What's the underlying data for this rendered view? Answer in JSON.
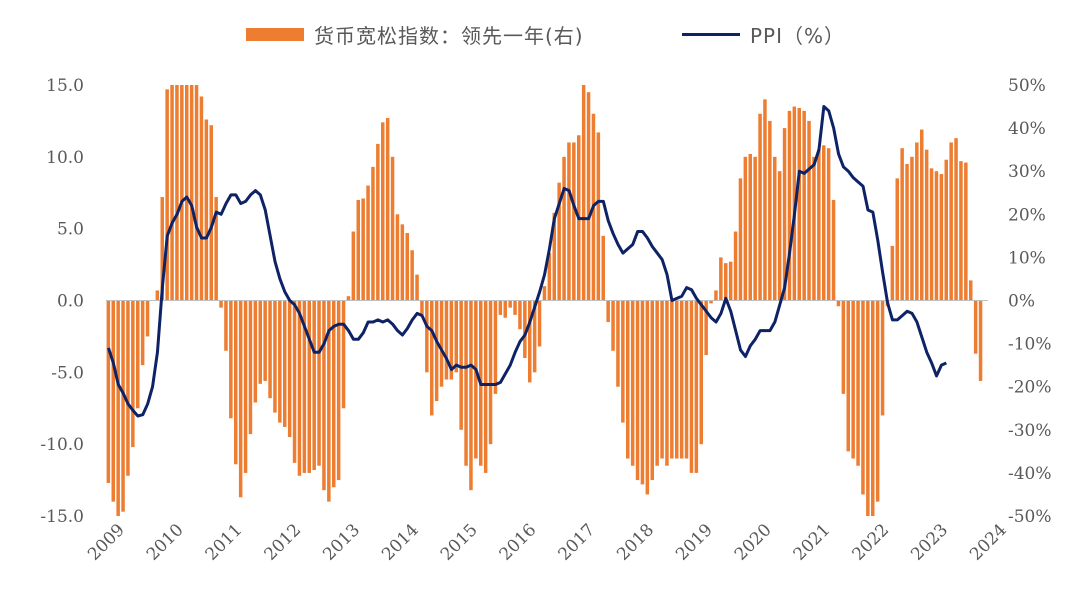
{
  "legend": {
    "bar_label": "货币宽松指数：领先一年(右)",
    "line_label": "PPI（%）"
  },
  "colors": {
    "bar": "#ED7D31",
    "line": "#0E2266",
    "axis": "#BFBFBF",
    "text": "#595959"
  },
  "chart_data": {
    "type": "bar+line",
    "title": "",
    "x_tick_labels": [
      "2009",
      "2010",
      "2011",
      "2012",
      "2013",
      "2014",
      "2015",
      "2016",
      "2017",
      "2018",
      "2019",
      "2020",
      "2021",
      "2022",
      "2023",
      "2024"
    ],
    "left_axis": {
      "ylim": [
        -15,
        15
      ],
      "ticks": [
        15,
        10,
        5,
        0,
        -5,
        -10,
        -15
      ],
      "tick_labels": [
        "15.0",
        "10.0",
        "5.0",
        "0.0",
        "-5.0",
        "-10.0",
        "-15.0"
      ]
    },
    "right_axis": {
      "ylim": [
        -50,
        50
      ],
      "ticks": [
        50,
        40,
        30,
        20,
        10,
        0,
        -10,
        -20,
        -30,
        -40,
        -50
      ],
      "tick_labels": [
        "50%",
        "40%",
        "30%",
        "20%",
        "10%",
        "0%",
        "-10%",
        "-20%",
        "-30%",
        "-40%",
        "-50%"
      ]
    },
    "series": [
      {
        "name": "货币宽松指数：领先一年(右)",
        "type": "bar",
        "axis": "left",
        "start": "2009-01",
        "frequency": "monthly",
        "values": [
          -12.7,
          -14.0,
          -15.0,
          -14.7,
          -12.2,
          -10.2,
          -7.5,
          -4.5,
          -2.5,
          0.0,
          0.7,
          7.2,
          14.7,
          15.0,
          15.0,
          15.0,
          15.0,
          15.0,
          15.0,
          14.2,
          12.6,
          12.2,
          7.2,
          -0.5,
          -3.5,
          -8.2,
          -11.4,
          -13.7,
          -12.0,
          -9.3,
          -7.1,
          -5.8,
          -5.6,
          -6.8,
          -7.8,
          -8.5,
          -8.8,
          -9.5,
          -11.3,
          -12.2,
          -12.0,
          -12.0,
          -11.8,
          -11.5,
          -13.2,
          -14.0,
          -13.0,
          -12.5,
          -7.5,
          0.3,
          4.8,
          7.0,
          7.1,
          8.0,
          9.3,
          10.9,
          12.4,
          12.7,
          10.0,
          6.0,
          5.3,
          4.7,
          3.5,
          1.8,
          -1.0,
          -5.0,
          -8.0,
          -7.0,
          -6.0,
          -5.5,
          -5.5,
          -5.0,
          -9.0,
          -11.5,
          -13.2,
          -11.0,
          -11.5,
          -12.0,
          -10.0,
          -6.5,
          -1.0,
          -1.2,
          -0.5,
          -1.0,
          -2.0,
          -4.0,
          -5.7,
          -5.0,
          -3.2,
          1.0,
          3.3,
          6.1,
          8.2,
          10.0,
          11.0,
          11.0,
          11.5,
          15.0,
          14.5,
          13.0,
          11.7,
          4.5,
          -1.5,
          -3.5,
          -6.0,
          -8.5,
          -11.0,
          -11.5,
          -12.5,
          -12.8,
          -13.5,
          -12.5,
          -11.5,
          -11.0,
          -11.5,
          -11.0,
          -11.0,
          -11.0,
          -11.0,
          -12.0,
          -12.0,
          -10.0,
          -3.8,
          -0.2,
          0.7,
          3.0,
          2.6,
          2.7,
          4.8,
          8.5,
          10.0,
          10.2,
          10.0,
          13.0,
          14.0,
          12.5,
          10.0,
          9.0,
          12.0,
          13.2,
          13.5,
          13.4,
          13.2,
          12.5,
          10.0,
          10.5,
          10.8,
          10.6,
          7.0,
          -0.4,
          -6.5,
          -10.5,
          -11.0,
          -11.5,
          -13.5,
          -15.0,
          -15.0,
          -14.0,
          -8.0,
          -0.4,
          3.8,
          8.5,
          10.6,
          9.5,
          10.0,
          11.0,
          11.9,
          10.5,
          9.2,
          9.0,
          8.8,
          9.8,
          11.0,
          11.3,
          9.7,
          9.6,
          1.4,
          -3.7,
          -5.6
        ]
      },
      {
        "name": "PPI（%）",
        "type": "line",
        "axis": "right",
        "start": "2009-01",
        "frequency": "monthly",
        "values": [
          -11.0,
          -14.5,
          -19.5,
          -21.5,
          -24.0,
          -25.5,
          -26.8,
          -26.5,
          -24.0,
          -20.0,
          -12.0,
          3.0,
          15.0,
          18.0,
          20.0,
          23.0,
          24.0,
          22.0,
          17.0,
          14.5,
          14.5,
          17.0,
          20.5,
          20.0,
          22.5,
          24.5,
          24.5,
          22.5,
          23.0,
          24.5,
          25.5,
          24.5,
          21.0,
          15.0,
          9.0,
          5.0,
          2.0,
          0.0,
          -1.0,
          -3.0,
          -6.0,
          -9.0,
          -12.0,
          -12.0,
          -10.0,
          -7.0,
          -6.0,
          -5.5,
          -5.5,
          -7.0,
          -9.0,
          -9.0,
          -7.5,
          -5.0,
          -5.0,
          -4.5,
          -5.0,
          -4.5,
          -5.5,
          -7.0,
          -8.0,
          -6.5,
          -4.5,
          -3.0,
          -3.5,
          -6.0,
          -7.0,
          -9.5,
          -11.5,
          -13.5,
          -16.0,
          -15.0,
          -15.5,
          -15.5,
          -15.0,
          -16.0,
          -19.5,
          -19.5,
          -19.5,
          -19.5,
          -19.0,
          -17.0,
          -15.0,
          -12.0,
          -9.5,
          -8.0,
          -5.0,
          -1.5,
          2.0,
          6.0,
          12.0,
          19.0,
          22.5,
          26.0,
          25.5,
          22.0,
          19.0,
          19.0,
          19.0,
          22.0,
          23.0,
          23.0,
          18.5,
          15.5,
          13.0,
          11.0,
          12.0,
          13.0,
          16.0,
          16.0,
          14.5,
          12.5,
          11.0,
          9.5,
          6.0,
          0.0,
          0.5,
          1.0,
          3.0,
          2.5,
          0.5,
          -1.0,
          -2.5,
          -4.0,
          -5.0,
          -3.0,
          0.5,
          -2.5,
          -7.0,
          -11.5,
          -13.0,
          -10.5,
          -9.0,
          -7.0,
          -7.0,
          -7.0,
          -5.0,
          -1.0,
          3.0,
          11.0,
          20.0,
          30.0,
          29.5,
          30.5,
          31.5,
          35.0,
          45.0,
          44.0,
          40.0,
          34.0,
          31.0,
          30.0,
          28.5,
          27.5,
          26.5,
          21.0,
          20.5,
          14.0,
          6.5,
          -0.5,
          -4.5,
          -4.5,
          -3.5,
          -2.5,
          -3.0,
          -5.0,
          -8.5,
          -12.0,
          -14.5,
          -17.5,
          -15.0,
          -14.5
        ]
      }
    ],
    "gridlines": false
  }
}
